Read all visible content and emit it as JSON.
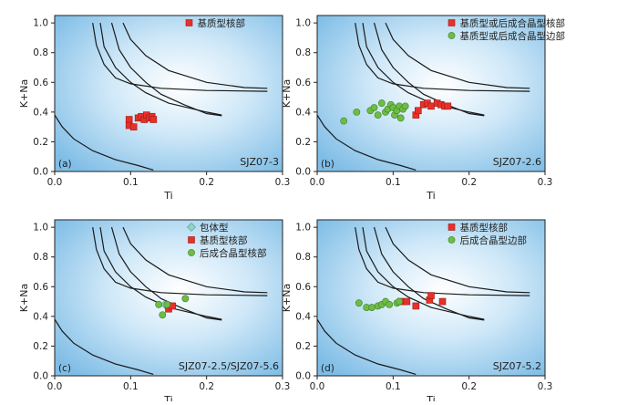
{
  "chart_data": [
    {
      "type": "scatter",
      "panel_label": "(a)",
      "sample": "SJZ07-3",
      "xlabel": "Ti",
      "ylabel": "K+Na",
      "xlim": [
        0,
        0.3
      ],
      "ylim": [
        0,
        1.05
      ],
      "xticks": [
        "0.0",
        "0.1",
        "0.2",
        "0.3"
      ],
      "yticks": [
        "0.0",
        "0.2",
        "0.4",
        "0.6",
        "0.8",
        "1.0"
      ],
      "legend_position": "top-right",
      "series": [
        {
          "name": "基质型核部",
          "marker": "square",
          "color": "#e8302a",
          "points": [
            [
              0.098,
              0.35
            ],
            [
              0.098,
              0.31
            ],
            [
              0.104,
              0.3
            ],
            [
              0.11,
              0.36
            ],
            [
              0.114,
              0.37
            ],
            [
              0.118,
              0.35
            ],
            [
              0.121,
              0.38
            ],
            [
              0.125,
              0.36
            ],
            [
              0.128,
              0.37
            ],
            [
              0.13,
              0.35
            ]
          ]
        }
      ]
    },
    {
      "type": "scatter",
      "panel_label": "(b)",
      "sample": "SJZ07-2.6",
      "xlabel": "Ti",
      "ylabel": "K+Na",
      "xlim": [
        0,
        0.3
      ],
      "ylim": [
        0,
        1.05
      ],
      "xticks": [
        "0.0",
        "0.1",
        "0.2",
        "0.3"
      ],
      "yticks": [
        "0.0",
        "0.2",
        "0.4",
        "0.6",
        "0.8",
        "1.0"
      ],
      "legend_position": "top-right",
      "series": [
        {
          "name": "基质型或后成合晶型核部",
          "marker": "square",
          "color": "#e8302a",
          "points": [
            [
              0.13,
              0.38
            ],
            [
              0.133,
              0.41
            ],
            [
              0.14,
              0.45
            ],
            [
              0.145,
              0.46
            ],
            [
              0.15,
              0.44
            ],
            [
              0.158,
              0.46
            ],
            [
              0.163,
              0.45
            ],
            [
              0.168,
              0.44
            ],
            [
              0.172,
              0.44
            ]
          ]
        },
        {
          "name": "基质型或后成合晶型边部",
          "marker": "circle",
          "color": "#6dbd45",
          "points": [
            [
              0.035,
              0.34
            ],
            [
              0.052,
              0.4
            ],
            [
              0.07,
              0.41
            ],
            [
              0.075,
              0.43
            ],
            [
              0.08,
              0.38
            ],
            [
              0.085,
              0.46
            ],
            [
              0.09,
              0.4
            ],
            [
              0.093,
              0.42
            ],
            [
              0.097,
              0.45
            ],
            [
              0.1,
              0.43
            ],
            [
              0.102,
              0.38
            ],
            [
              0.105,
              0.41
            ],
            [
              0.108,
              0.44
            ],
            [
              0.11,
              0.36
            ],
            [
              0.113,
              0.42
            ],
            [
              0.116,
              0.44
            ]
          ]
        }
      ]
    },
    {
      "type": "scatter",
      "panel_label": "(c)",
      "sample": "SJZ07-2.5/SJZ07-5.6",
      "xlabel": "Ti",
      "ylabel": "K+Na",
      "xlim": [
        0,
        0.3
      ],
      "ylim": [
        0,
        1.05
      ],
      "xticks": [
        "0.0",
        "0.1",
        "0.2",
        "0.3"
      ],
      "yticks": [
        "0.0",
        "0.2",
        "0.4",
        "0.6",
        "0.8",
        "1.0"
      ],
      "legend_position": "top-left",
      "series": [
        {
          "name": "包体型",
          "marker": "diamond",
          "color": "#8fd3c9",
          "points": [
            [
              0.145,
              0.48
            ]
          ]
        },
        {
          "name": "基质型核部",
          "marker": "square",
          "color": "#e8302a",
          "points": [
            [
              0.15,
              0.45
            ],
            [
              0.155,
              0.47
            ]
          ]
        },
        {
          "name": "后成合晶型核部",
          "marker": "circle",
          "color": "#6dbd45",
          "points": [
            [
              0.137,
              0.48
            ],
            [
              0.142,
              0.41
            ],
            [
              0.148,
              0.48
            ],
            [
              0.172,
              0.52
            ]
          ]
        }
      ]
    },
    {
      "type": "scatter",
      "panel_label": "(d)",
      "sample": "SJZ07-5.2",
      "xlabel": "Ti",
      "ylabel": "K+Na",
      "xlim": [
        0,
        0.3
      ],
      "ylim": [
        0,
        1.05
      ],
      "xticks": [
        "0.0",
        "0.1",
        "0.2",
        "0.3"
      ],
      "yticks": [
        "0.0",
        "0.2",
        "0.4",
        "0.6",
        "0.8",
        "1.0"
      ],
      "legend_position": "top-right",
      "series": [
        {
          "name": "基质型核部",
          "marker": "square",
          "color": "#e8302a",
          "points": [
            [
              0.11,
              0.5
            ],
            [
              0.118,
              0.5
            ],
            [
              0.13,
              0.47
            ],
            [
              0.148,
              0.51
            ],
            [
              0.15,
              0.54
            ],
            [
              0.165,
              0.5
            ]
          ]
        },
        {
          "name": "后成合晶型边部",
          "marker": "circle",
          "color": "#6dbd45",
          "points": [
            [
              0.055,
              0.49
            ],
            [
              0.065,
              0.46
            ],
            [
              0.072,
              0.46
            ],
            [
              0.08,
              0.47
            ],
            [
              0.085,
              0.48
            ],
            [
              0.09,
              0.5
            ],
            [
              0.095,
              0.48
            ],
            [
              0.105,
              0.49
            ],
            [
              0.108,
              0.5
            ]
          ]
        }
      ]
    }
  ],
  "reference_curves": [
    [
      [
        0.05,
        1.0
      ],
      [
        0.055,
        0.85
      ],
      [
        0.065,
        0.72
      ],
      [
        0.08,
        0.63
      ],
      [
        0.1,
        0.59
      ],
      [
        0.14,
        0.56
      ],
      [
        0.2,
        0.545
      ],
      [
        0.28,
        0.54
      ]
    ],
    [
      [
        0.06,
        1.0
      ],
      [
        0.065,
        0.84
      ],
      [
        0.08,
        0.7
      ],
      [
        0.1,
        0.6
      ],
      [
        0.12,
        0.53
      ],
      [
        0.15,
        0.46
      ],
      [
        0.2,
        0.4
      ],
      [
        0.22,
        0.38
      ]
    ],
    [
      [
        0.075,
        1.0
      ],
      [
        0.085,
        0.82
      ],
      [
        0.1,
        0.7
      ],
      [
        0.12,
        0.6
      ],
      [
        0.14,
        0.52
      ],
      [
        0.17,
        0.45
      ],
      [
        0.2,
        0.39
      ],
      [
        0.22,
        0.375
      ]
    ],
    [
      [
        0.0,
        0.38
      ],
      [
        0.01,
        0.3
      ],
      [
        0.025,
        0.22
      ],
      [
        0.05,
        0.14
      ],
      [
        0.08,
        0.08
      ],
      [
        0.11,
        0.04
      ],
      [
        0.13,
        0.01
      ]
    ],
    [
      [
        0.09,
        1.0
      ],
      [
        0.1,
        0.89
      ],
      [
        0.12,
        0.78
      ],
      [
        0.15,
        0.68
      ],
      [
        0.2,
        0.6
      ],
      [
        0.25,
        0.565
      ],
      [
        0.28,
        0.56
      ]
    ]
  ]
}
